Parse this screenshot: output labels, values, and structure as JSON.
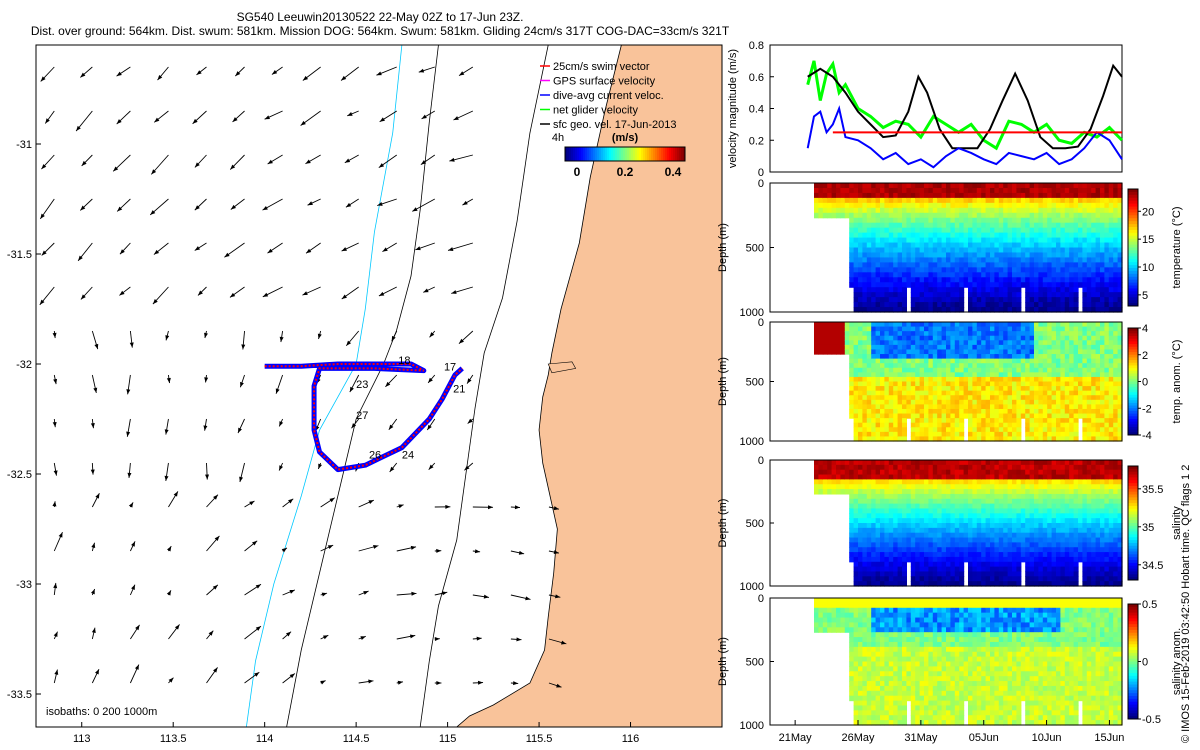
{
  "title": {
    "line1": "SG540 Leeuwin20130522 22-May 02Z to 17-Jun 23Z.",
    "line2": "Dist. over ground: 564km. Dist. swum: 581km. Mission DOG: 564km. Swum: 581km. Gliding 24cm/s 317T COG-DAC=33cm/s 321T"
  },
  "footer": "© IMOS 15-Feb-2019 03:42:50 Hobart time. QC flags 1  2",
  "colors": {
    "land": "#f9c39a",
    "swim": "#ff0000",
    "gps": "#ff00ff",
    "dac": "#0000ff",
    "net": "#00ff00",
    "geo": "#000000",
    "isobath": "#00c8ff"
  },
  "chart_data": [
    {
      "id": "map",
      "type": "scatter",
      "title": "",
      "xlabel": "",
      "ylabel": "",
      "xlim": [
        112.75,
        116.5
      ],
      "ylim": [
        -33.65,
        -30.55
      ],
      "xticks": [
        113,
        113.5,
        114,
        114.5,
        115,
        115.5,
        116
      ],
      "xtick_labels": [
        "113",
        "113.5",
        "114",
        "114.5",
        "115",
        "115.5",
        "116"
      ],
      "yticks": [
        -31,
        -31.5,
        -32,
        -32.5,
        -33,
        -33.5
      ],
      "ytick_labels": [
        "-31",
        "-31.5",
        "-32",
        "-32.5",
        "-33",
        "-33.5"
      ],
      "legend": [
        "25cm/s swim vector",
        "GPS surface velocity",
        "dive-avg current veloc.",
        "net glider velocity",
        "sfc geo. vel. 17-Jun-2013"
      ],
      "legend_position": "top-right",
      "colorbar": {
        "label": "(m/s)",
        "ticks": [
          "0",
          "0.2",
          "0.4"
        ],
        "range": [
          0,
          0.5
        ],
        "note": "4h"
      },
      "isobath_label": "isobaths: 0   200   1000m",
      "track": [
        [
          114.0,
          -32.01
        ],
        [
          114.2,
          -32.01
        ],
        [
          114.4,
          -32.0
        ],
        [
          114.6,
          -32.0
        ],
        [
          114.8,
          -32.0
        ],
        [
          114.87,
          -32.03
        ],
        [
          114.6,
          -32.02
        ],
        [
          114.3,
          -32.02
        ],
        [
          114.27,
          -32.1
        ],
        [
          114.27,
          -32.3
        ],
        [
          114.3,
          -32.4
        ],
        [
          114.4,
          -32.48
        ],
        [
          114.55,
          -32.46
        ],
        [
          114.75,
          -32.38
        ],
        [
          114.9,
          -32.25
        ],
        [
          114.97,
          -32.16
        ],
        [
          115.04,
          -32.05
        ],
        [
          115.08,
          -32.02
        ]
      ],
      "day_labels": [
        {
          "text": "18",
          "x": 114.73,
          "y": -32.0
        },
        {
          "text": "17",
          "x": 114.98,
          "y": -32.03
        },
        {
          "text": "23",
          "x": 114.5,
          "y": -32.11
        },
        {
          "text": "21",
          "x": 115.03,
          "y": -32.13
        },
        {
          "text": "27",
          "x": 114.5,
          "y": -32.25
        },
        {
          "text": "26",
          "x": 114.57,
          "y": -32.43
        },
        {
          "text": "24",
          "x": 114.75,
          "y": -32.43
        }
      ]
    },
    {
      "id": "velocity",
      "type": "line",
      "xlabel": "",
      "ylabel": "velocity magnitude (m/s)",
      "ylim": [
        0,
        0.8
      ],
      "yticks": [
        "0",
        "0.2",
        "0.4",
        "0.6",
        "0.8"
      ],
      "x_day_range": [
        19,
        47
      ],
      "series": [
        {
          "name": "net glider velocity",
          "color": "#00ff00",
          "x": [
            22,
            22.5,
            23,
            23.5,
            24,
            24.5,
            25,
            26,
            27,
            28,
            29,
            30,
            31,
            32,
            33,
            34,
            35,
            36,
            37,
            38,
            39,
            40,
            41,
            42,
            43,
            44,
            45,
            46,
            47
          ],
          "y": [
            0.55,
            0.7,
            0.45,
            0.62,
            0.68,
            0.5,
            0.55,
            0.4,
            0.35,
            0.28,
            0.32,
            0.3,
            0.22,
            0.35,
            0.3,
            0.25,
            0.3,
            0.2,
            0.15,
            0.32,
            0.3,
            0.25,
            0.3,
            0.2,
            0.18,
            0.25,
            0.22,
            0.28,
            0.2
          ]
        },
        {
          "name": "sfc geo. vel.",
          "color": "#000000",
          "x": [
            22,
            23,
            24,
            25,
            26,
            27,
            28,
            29,
            30,
            30.8,
            31.5,
            32.5,
            33.5,
            34.5,
            35.5,
            36.5,
            37.5,
            38.5,
            39.5,
            40.5,
            41.5,
            42.5,
            43.5,
            44.5,
            45.5,
            46.3,
            47
          ],
          "y": [
            0.6,
            0.65,
            0.6,
            0.5,
            0.38,
            0.3,
            0.22,
            0.23,
            0.38,
            0.6,
            0.5,
            0.27,
            0.15,
            0.15,
            0.15,
            0.27,
            0.45,
            0.62,
            0.45,
            0.22,
            0.15,
            0.15,
            0.16,
            0.27,
            0.48,
            0.67,
            0.6
          ]
        },
        {
          "name": "dive-avg current veloc.",
          "color": "#0000ff",
          "x": [
            22,
            22.5,
            23,
            23.5,
            24,
            24.5,
            25,
            26,
            27,
            28,
            29,
            30,
            31,
            32,
            33,
            34,
            35,
            36,
            37,
            38,
            39,
            40,
            41,
            42,
            43,
            44,
            45,
            46,
            47
          ],
          "y": [
            0.15,
            0.35,
            0.38,
            0.25,
            0.3,
            0.4,
            0.22,
            0.2,
            0.15,
            0.08,
            0.12,
            0.05,
            0.08,
            0.03,
            0.1,
            0.15,
            0.12,
            0.08,
            0.05,
            0.12,
            0.1,
            0.08,
            0.12,
            0.05,
            0.08,
            0.15,
            0.25,
            0.2,
            0.08
          ]
        },
        {
          "name": "swim speed",
          "color": "#ff0000",
          "x": [
            24,
            47
          ],
          "y": [
            0.25,
            0.25
          ]
        }
      ]
    },
    {
      "id": "temperature",
      "type": "heatmap",
      "ylabel": "Depth (m)",
      "ylim": [
        1000,
        0
      ],
      "yticks": [
        "0",
        "500",
        "1000"
      ],
      "colorbar": {
        "label": "temperature (°C)",
        "ticks": [
          "5",
          "10",
          "15",
          "20"
        ],
        "range": [
          3,
          24
        ]
      }
    },
    {
      "id": "temp-anomaly",
      "type": "heatmap",
      "ylabel": "Depth (m)",
      "ylim": [
        1000,
        0
      ],
      "yticks": [
        "0",
        "500",
        "1000"
      ],
      "colorbar": {
        "label": "temp. anom. (°C)",
        "ticks": [
          "-4",
          "-2",
          "0",
          "2",
          "4"
        ],
        "range": [
          -4,
          4
        ]
      }
    },
    {
      "id": "salinity",
      "type": "heatmap",
      "ylabel": "Depth (m)",
      "ylim": [
        1000,
        0
      ],
      "yticks": [
        "0",
        "500",
        "1000"
      ],
      "colorbar": {
        "label": "salinity",
        "ticks": [
          "34.5",
          "35",
          "35.5"
        ],
        "range": [
          34.3,
          35.8
        ]
      }
    },
    {
      "id": "salinity-anomaly",
      "type": "heatmap",
      "ylabel": "Depth (m)",
      "ylim": [
        1000,
        0
      ],
      "yticks": [
        "0",
        "500",
        "1000"
      ],
      "xtick_labels": [
        "21May",
        "26May",
        "31May",
        "05Jun",
        "10Jun",
        "15Jun"
      ],
      "colorbar": {
        "label": "salinity anom.",
        "ticks": [
          "-0.5",
          "0",
          "0.5"
        ],
        "range": [
          -0.5,
          0.5
        ]
      }
    }
  ]
}
